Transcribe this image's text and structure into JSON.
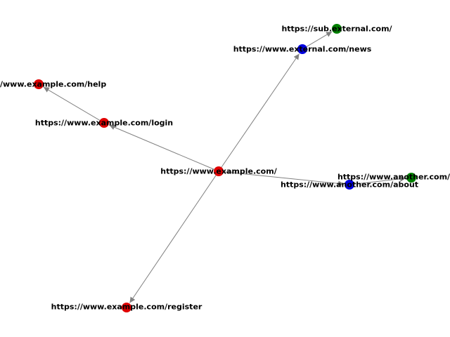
{
  "graph": {
    "colors": {
      "internal": "#e00000",
      "external": "#0000e0",
      "subdomain": "#008000",
      "edge": "#808080",
      "label": "#000000"
    },
    "nodes": [
      {
        "id": "root",
        "label": "https://www.example.com/",
        "group": "internal"
      },
      {
        "id": "login",
        "label": "https://www.example.com/login",
        "group": "internal"
      },
      {
        "id": "help",
        "label": "https://www.example.com/help",
        "group": "internal"
      },
      {
        "id": "register",
        "label": "https://www.example.com/register",
        "group": "internal"
      },
      {
        "id": "news",
        "label": "https://www.external.com/news",
        "group": "external"
      },
      {
        "id": "sub",
        "label": "https://sub.external.com/",
        "group": "subdomain"
      },
      {
        "id": "about",
        "label": "https://www.another.com/about",
        "group": "external"
      },
      {
        "id": "another",
        "label": "https://www.another.com/",
        "group": "subdomain"
      }
    ],
    "edges": [
      {
        "from": "root",
        "to": "login"
      },
      {
        "from": "login",
        "to": "help"
      },
      {
        "from": "root",
        "to": "register"
      },
      {
        "from": "root",
        "to": "news"
      },
      {
        "from": "news",
        "to": "sub"
      },
      {
        "from": "root",
        "to": "about"
      },
      {
        "from": "about",
        "to": "another"
      }
    ]
  }
}
